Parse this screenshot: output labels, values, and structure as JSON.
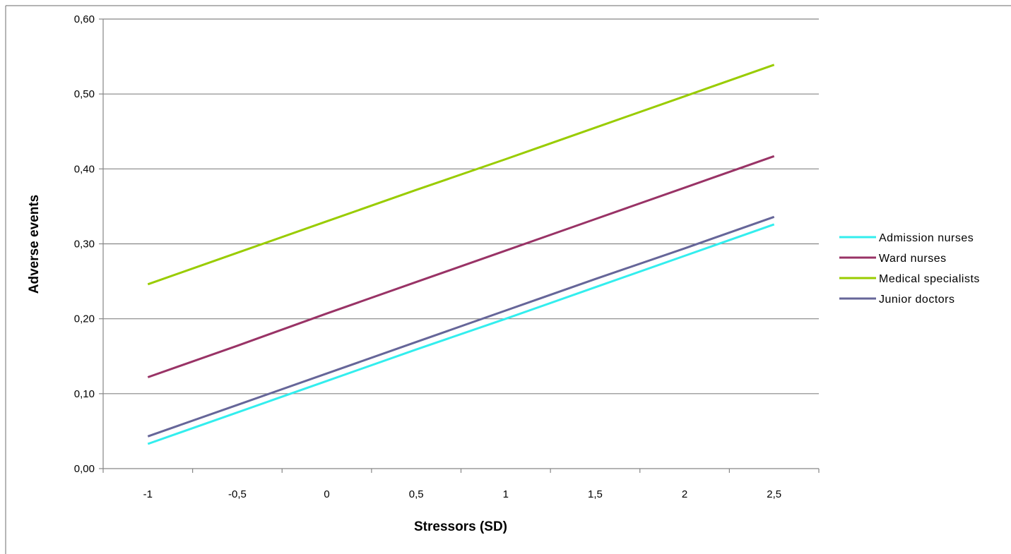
{
  "chart_data": {
    "type": "line",
    "title": "",
    "xlabel": "Stressors (SD)",
    "ylabel": "Adverse events",
    "categories": [
      "-1",
      "-0,5",
      "0",
      "0,5",
      "1",
      "1,5",
      "2",
      "2,5"
    ],
    "x": [
      -1,
      -0.5,
      0,
      0.5,
      1,
      1.5,
      2,
      2.5
    ],
    "ylim": [
      0,
      0.6
    ],
    "yticks": [
      "0,00",
      "0,10",
      "0,20",
      "0,30",
      "0,40",
      "0,50",
      "0,60"
    ],
    "grid": true,
    "legend_position": "right",
    "series": [
      {
        "name": "Admission nurses",
        "color": "#33EEEE",
        "values": [
          0.033,
          0.075,
          0.117,
          0.159,
          0.2,
          0.242,
          0.284,
          0.326
        ]
      },
      {
        "name": "Ward nurses",
        "color": "#993366",
        "values": [
          0.122,
          0.164,
          0.207,
          0.249,
          0.291,
          0.333,
          0.375,
          0.417
        ]
      },
      {
        "name": "Medical specialists",
        "color": "#99CC00",
        "values": [
          0.246,
          0.288,
          0.33,
          0.372,
          0.413,
          0.455,
          0.497,
          0.539
        ]
      },
      {
        "name": "Junior doctors",
        "color": "#666699",
        "values": [
          0.043,
          0.085,
          0.127,
          0.169,
          0.211,
          0.253,
          0.294,
          0.336
        ]
      }
    ]
  }
}
